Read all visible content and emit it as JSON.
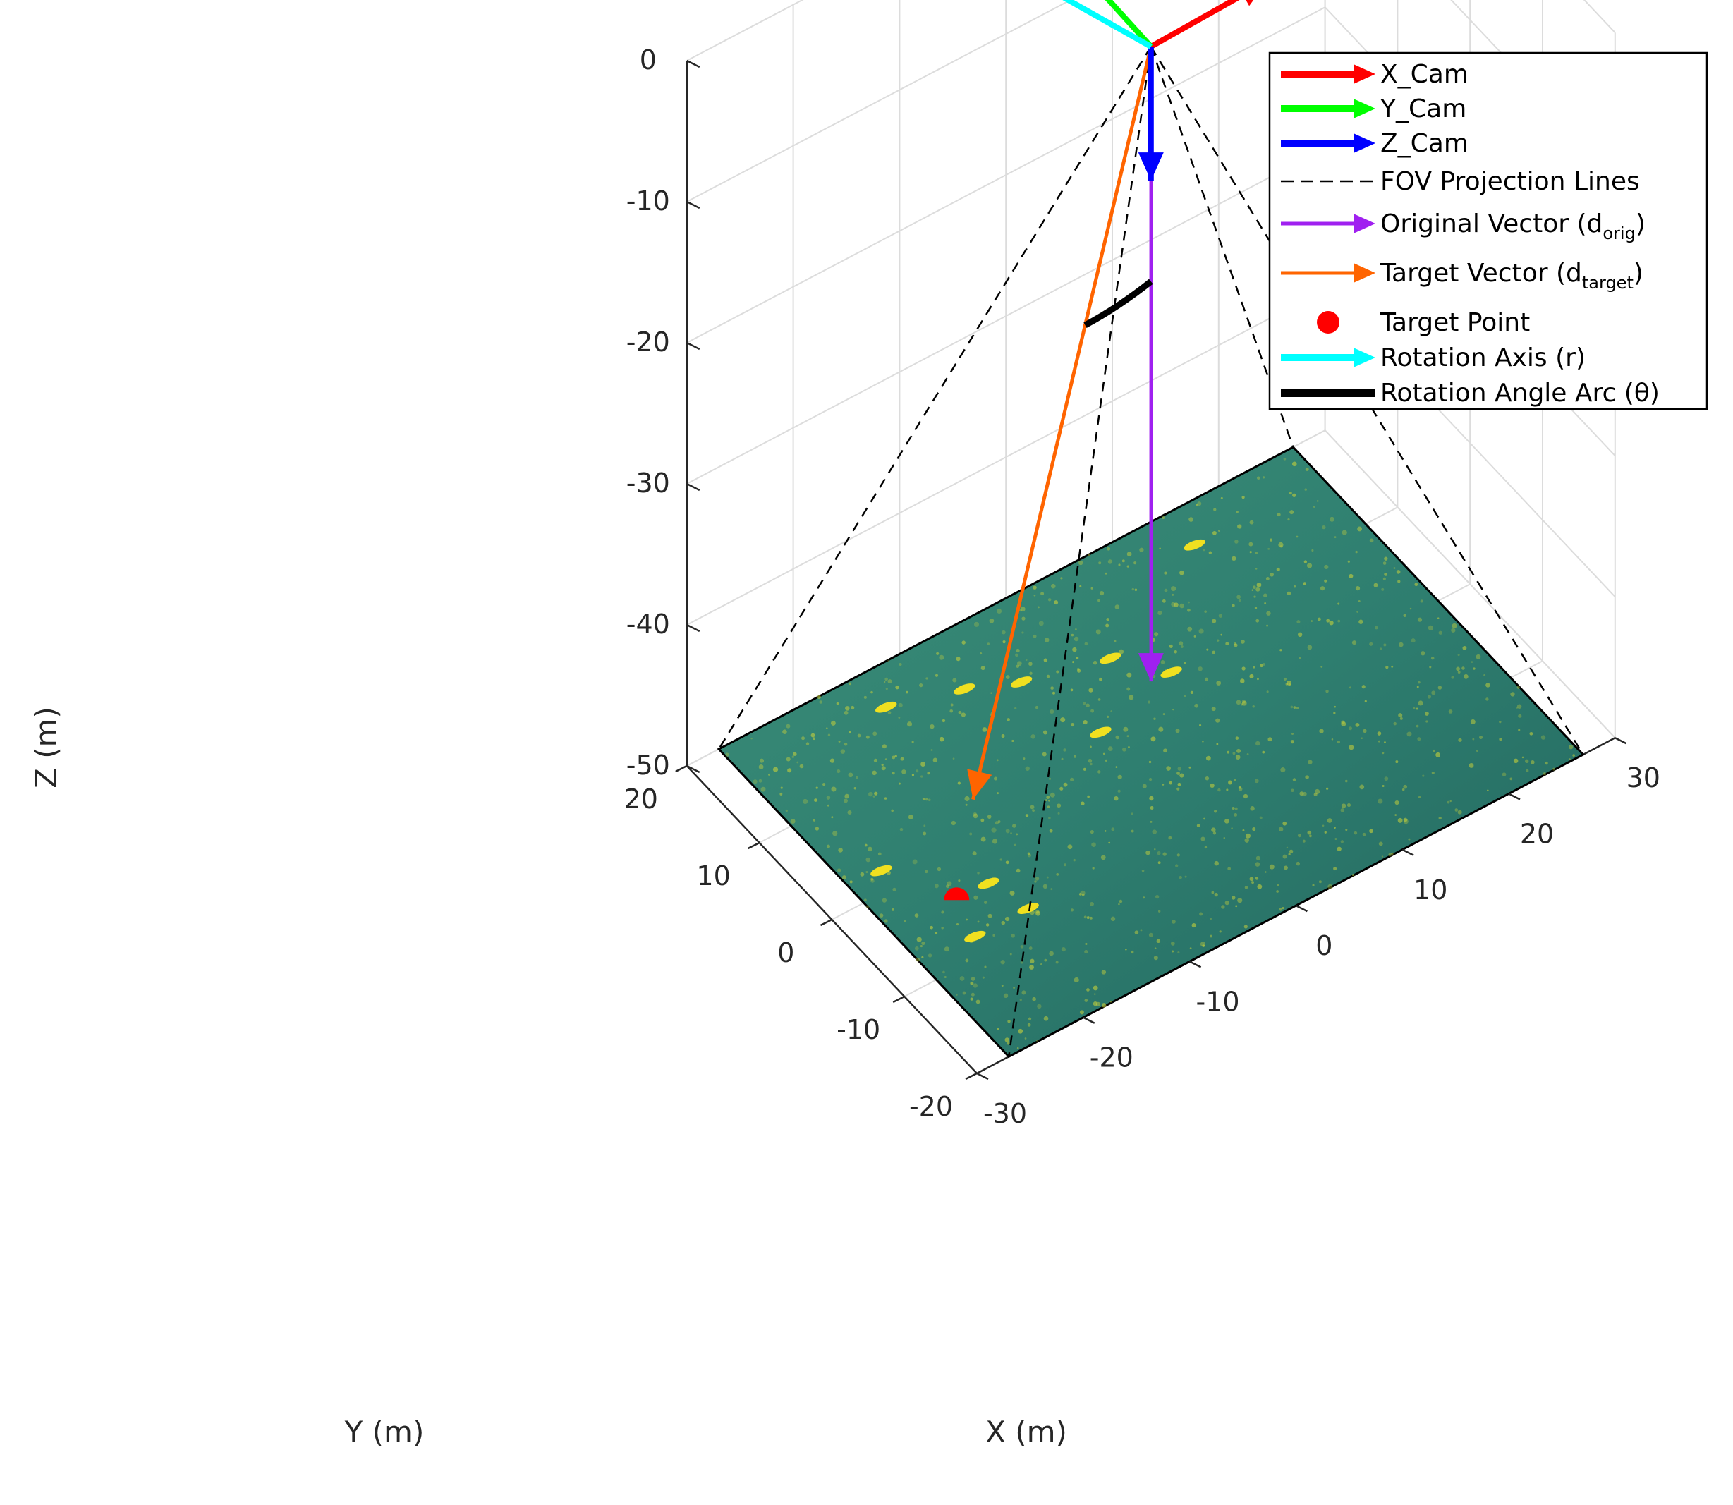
{
  "chart_data": {
    "type": "3d-line",
    "xlabel": "X (m)",
    "ylabel": "Y (m)",
    "zlabel": "Z (m)",
    "xlim": [
      -30,
      30
    ],
    "ylim": [
      -20,
      20
    ],
    "zlim": [
      -50,
      0
    ],
    "x_ticks": [
      "-30",
      "-20",
      "-10",
      "0",
      "10",
      "20",
      "30"
    ],
    "y_ticks": [
      "-20",
      "-10",
      "0",
      "10",
      "20"
    ],
    "z_ticks": [
      "0",
      "-10",
      "-20",
      "-30",
      "-40",
      "-50"
    ],
    "grid": true,
    "legend_position": "top-right",
    "camera_origin": [
      0,
      0,
      0
    ],
    "fov_corners": [
      [
        -27,
        20,
        -50
      ],
      [
        27,
        20,
        -50
      ],
      [
        27,
        -20,
        -50
      ],
      [
        -27,
        -20,
        -50
      ]
    ],
    "original_vector_end": [
      0,
      0,
      -45
    ],
    "target_vector_end": [
      -14,
      4,
      -50
    ],
    "target_point": [
      -21,
      -4,
      -50
    ],
    "series": [
      {
        "name": "X_Cam",
        "color": "#ff0000",
        "style": "arrow"
      },
      {
        "name": "Y_Cam",
        "color": "#00ff00",
        "style": "arrow"
      },
      {
        "name": "Z_Cam",
        "color": "#0000ff",
        "style": "arrow"
      },
      {
        "name": "FOV Projection Lines",
        "color": "#000000",
        "style": "dashed"
      },
      {
        "name": "Original Vector (d",
        "sub": "orig",
        "suffix": ")",
        "color": "#a020f0",
        "style": "arrow"
      },
      {
        "name": "Target Vector (d",
        "sub": "target",
        "suffix": ")",
        "color": "#ff6400",
        "style": "arrow"
      },
      {
        "name": "Target Point",
        "color": "#ff0000",
        "style": "marker"
      },
      {
        "name": "Rotation Axis (r)",
        "color": "#00ffff",
        "style": "arrow"
      },
      {
        "name": "Rotation Angle Arc (θ)",
        "color": "#000000",
        "style": "thick"
      }
    ]
  },
  "colors": {
    "ground_base": "#2f7a6e",
    "ground_highlight": "#c9d23a",
    "grid": "#dcdcdc",
    "axis": "#262626"
  }
}
